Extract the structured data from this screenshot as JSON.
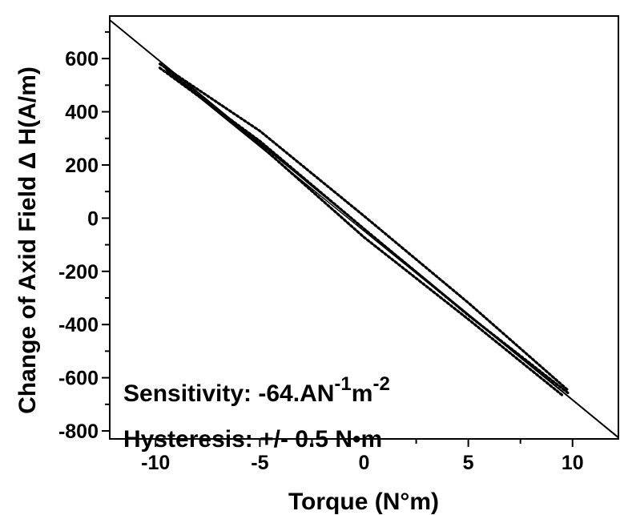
{
  "chart_data": {
    "type": "line",
    "xlabel": "Torque (N°m)",
    "ylabel": "Change of Axid Field   Δ H(A/m)",
    "xlim": [
      -12.2,
      12.2
    ],
    "ylim": [
      -830,
      760
    ],
    "x_ticks": [
      -10,
      -5,
      0,
      5,
      10
    ],
    "y_ticks": [
      600,
      400,
      200,
      0,
      -200,
      -400,
      -600,
      -800
    ],
    "grid": false,
    "annotations": {
      "sensitivity_prefix": "Sensitivity: -64.AN",
      "sensitivity_exp1": "-1",
      "sensitivity_mid": "m",
      "sensitivity_exp2": "-2",
      "hysteresis": "Hysteresis: +/- 0.5 N•m"
    },
    "series": [
      {
        "style": "solid",
        "x": [
          -12.2,
          12.2
        ],
        "y": [
          745,
          -825
        ]
      },
      {
        "style": "solid",
        "x": [
          -9.5,
          9.5
        ],
        "y": [
          555,
          -652
        ]
      },
      {
        "style": "dotted",
        "x": [
          -9.8,
          -5,
          0,
          5,
          9.8
        ],
        "y": [
          565,
          290,
          -40,
          -365,
          -658
        ]
      },
      {
        "style": "dotted",
        "x": [
          -9.8,
          -5,
          0,
          5,
          9.8
        ],
        "y": [
          580,
          328,
          8,
          -318,
          -648
        ]
      },
      {
        "style": "dotted",
        "x": [
          -9.5,
          -5,
          0,
          5,
          9.5
        ],
        "y": [
          562,
          275,
          -72,
          -380,
          -665
        ]
      }
    ]
  }
}
